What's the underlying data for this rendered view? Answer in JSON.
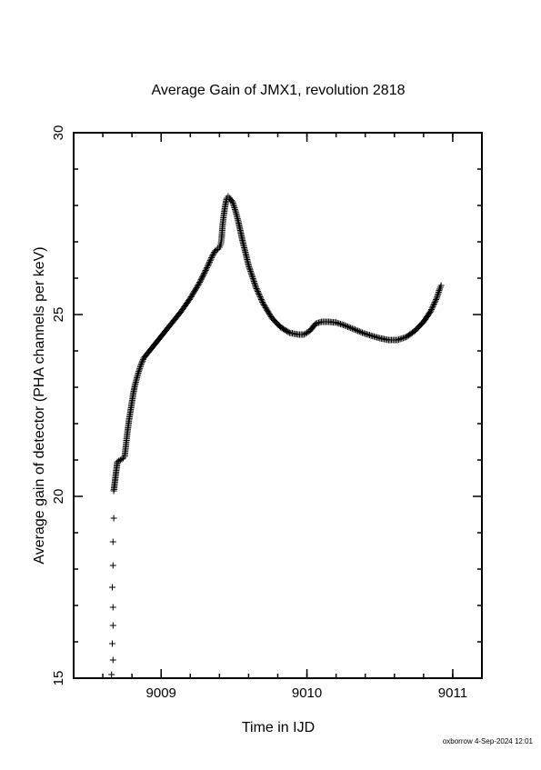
{
  "chart_data": {
    "type": "scatter",
    "marker": "+",
    "title": "Average Gain of JMX1, revolution 2818",
    "xlabel": "Time in IJD",
    "ylabel": "Average gain of detector (PHA channels per keV)",
    "xlim": [
      9008.4,
      9011.2
    ],
    "ylim": [
      15,
      30
    ],
    "xticks": [
      9009,
      9010,
      9011
    ],
    "yticks": [
      15,
      20,
      25,
      30
    ],
    "xtick_labels": [
      "9009",
      "9010",
      "9011"
    ],
    "ytick_labels": [
      "15",
      "20",
      "25",
      "30"
    ],
    "grid": false,
    "footer": "oxborrow  4-Sep-2024 12:01",
    "series": [
      {
        "points": [
          [
            9008.66,
            15.1
          ],
          [
            9008.67,
            15.5
          ],
          [
            9008.665,
            15.95
          ],
          [
            9008.67,
            16.45
          ],
          [
            9008.67,
            16.95
          ],
          [
            9008.665,
            17.5
          ],
          [
            9008.67,
            18.1
          ],
          [
            9008.67,
            18.75
          ],
          [
            9008.675,
            19.4
          ],
          [
            9008.675,
            20.15
          ],
          [
            9008.7,
            20.95
          ],
          [
            9008.72,
            21.0
          ],
          [
            9008.74,
            21.05
          ],
          [
            9008.75,
            21.1
          ],
          [
            9008.76,
            21.45
          ],
          [
            9008.77,
            21.8
          ],
          [
            9008.78,
            22.1
          ],
          [
            9008.79,
            22.35
          ],
          [
            9008.8,
            22.6
          ],
          [
            9008.81,
            22.85
          ],
          [
            9008.82,
            23.05
          ],
          [
            9008.84,
            23.35
          ],
          [
            9008.86,
            23.6
          ],
          [
            9008.88,
            23.8
          ],
          [
            9008.92,
            24.0
          ],
          [
            9008.97,
            24.25
          ],
          [
            9009.02,
            24.5
          ],
          [
            9009.08,
            24.8
          ],
          [
            9009.14,
            25.1
          ],
          [
            9009.2,
            25.45
          ],
          [
            9009.26,
            25.85
          ],
          [
            9009.31,
            26.25
          ],
          [
            9009.35,
            26.6
          ],
          [
            9009.37,
            26.75
          ],
          [
            9009.39,
            26.8
          ],
          [
            9009.4,
            26.85
          ],
          [
            9009.41,
            26.95
          ],
          [
            9009.415,
            27.1
          ],
          [
            9009.42,
            27.4
          ],
          [
            9009.43,
            27.75
          ],
          [
            9009.44,
            28.0
          ],
          [
            9009.45,
            28.2
          ],
          [
            9009.46,
            28.25
          ],
          [
            9009.47,
            28.2
          ],
          [
            9009.49,
            28.1
          ],
          [
            9009.51,
            27.85
          ],
          [
            9009.53,
            27.55
          ],
          [
            9009.56,
            27.0
          ],
          [
            9009.6,
            26.35
          ],
          [
            9009.65,
            25.75
          ],
          [
            9009.7,
            25.3
          ],
          [
            9009.76,
            24.9
          ],
          [
            9009.82,
            24.65
          ],
          [
            9009.88,
            24.5
          ],
          [
            9009.94,
            24.45
          ],
          [
            9009.98,
            24.45
          ],
          [
            9010.02,
            24.55
          ],
          [
            9010.06,
            24.75
          ],
          [
            9010.1,
            24.8
          ],
          [
            9010.15,
            24.8
          ],
          [
            9010.2,
            24.78
          ],
          [
            9010.26,
            24.7
          ],
          [
            9010.32,
            24.6
          ],
          [
            9010.38,
            24.5
          ],
          [
            9010.44,
            24.42
          ],
          [
            9010.5,
            24.35
          ],
          [
            9010.56,
            24.3
          ],
          [
            9010.62,
            24.3
          ],
          [
            9010.68,
            24.38
          ],
          [
            9010.74,
            24.55
          ],
          [
            9010.8,
            24.8
          ],
          [
            9010.85,
            25.1
          ],
          [
            9010.89,
            25.45
          ],
          [
            9010.91,
            25.7
          ],
          [
            9010.92,
            25.8
          ]
        ]
      }
    ]
  }
}
